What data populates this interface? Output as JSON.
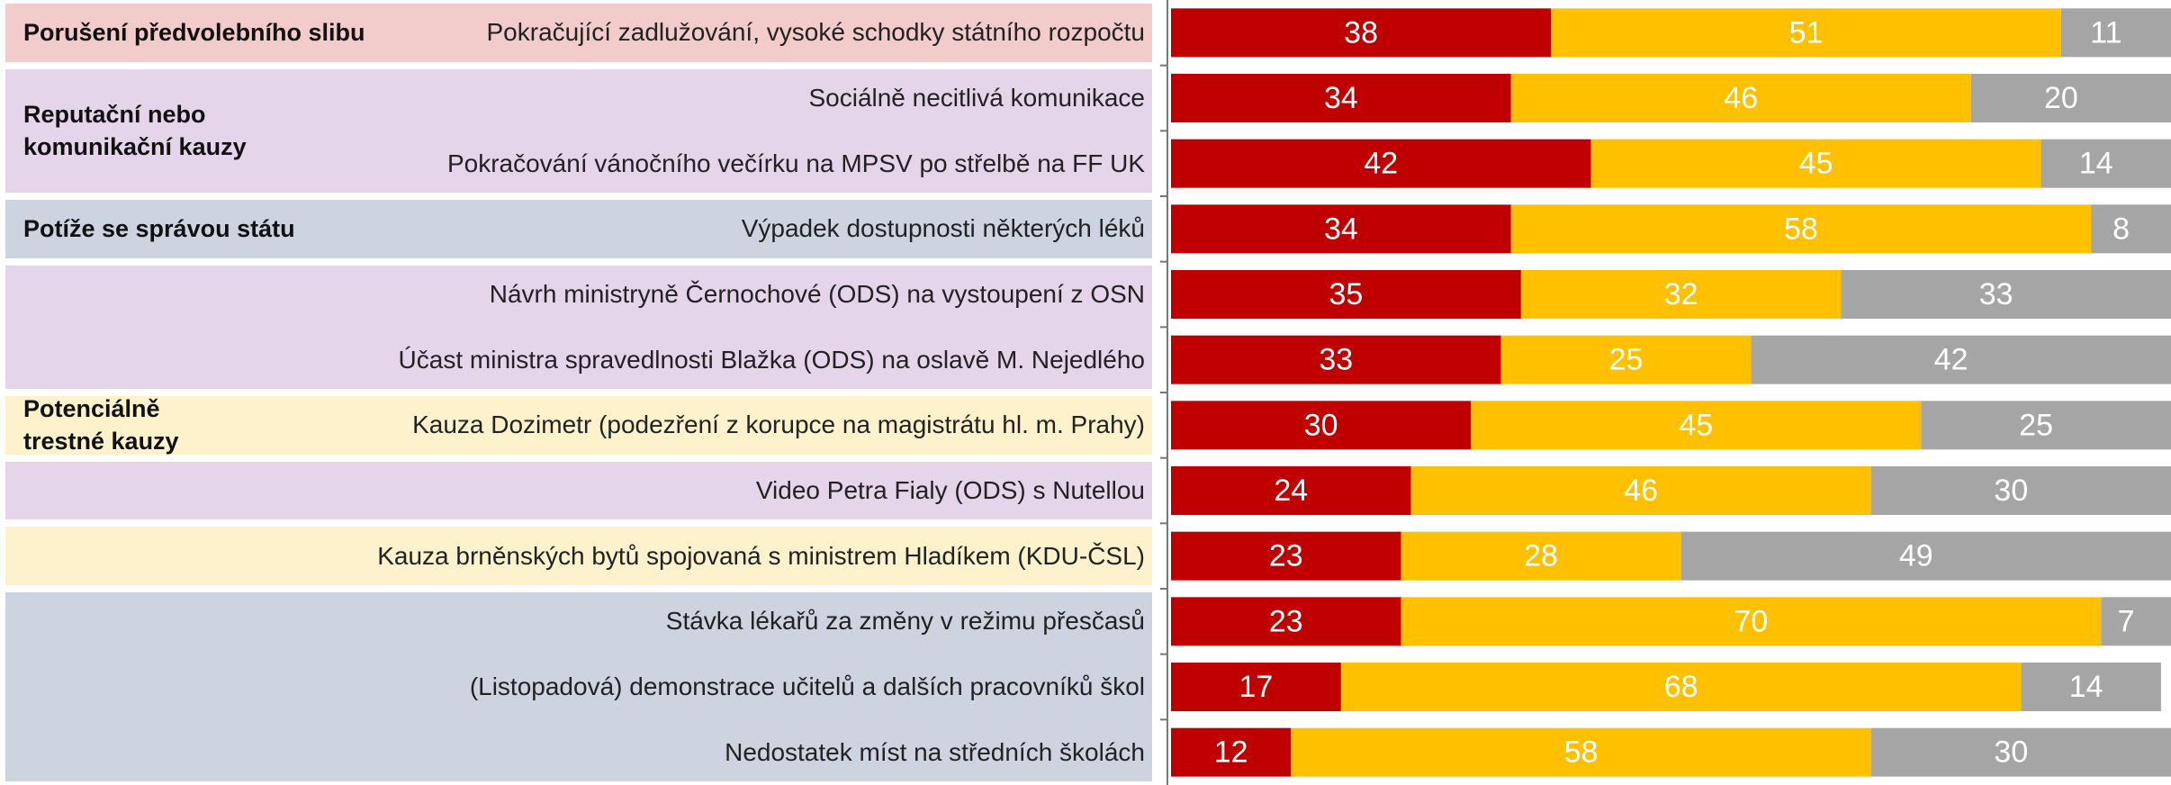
{
  "chart_data": {
    "type": "stacked_barh",
    "group_labels": [
      "Porušení předvolebního slibu",
      "Reputační nebo\nkomunikační kauzy",
      "Potíže se správou státu",
      "Potenciálně\ntrestné kauzy"
    ],
    "categories": [
      "Pokračující zadlužování, vysoké schodky státního rozpočtu",
      "Sociálně necitlivá komunikace",
      "Pokračování vánočního večírku na MPSV po střelbě na FF UK",
      "Výpadek dostupnosti některých léků",
      "Návrh ministryně Černochové (ODS) na vystoupení z OSN",
      "Účast ministra spravedlnosti Blažka (ODS) na oslavě M. Nejedlého",
      "Kauza Dozimetr (podezření z korupce na magistrátu hl. m. Prahy)",
      "Video Petra Fialy (ODS) s Nutellou",
      "Kauza brněnských bytů spojovaná s ministrem Hladíkem (KDU-ČSL)",
      "Stávka lékařů za změny v režimu přesčasů",
      "(Listopadová) demonstrace učitelů a dalších pracovníků škol",
      "Nedostatek míst na středních školách"
    ],
    "series": [
      {
        "color": "#c00000",
        "values": [
          38,
          34,
          42,
          34,
          35,
          33,
          30,
          24,
          23,
          23,
          17,
          12
        ]
      },
      {
        "color": "#ffc000",
        "values": [
          51,
          46,
          45,
          58,
          32,
          25,
          45,
          46,
          28,
          70,
          68,
          58
        ]
      },
      {
        "color": "#a5a5a5",
        "values": [
          11,
          20,
          14,
          8,
          33,
          42,
          25,
          30,
          49,
          7,
          14,
          30
        ]
      }
    ],
    "xlim": [
      0,
      100
    ]
  }
}
